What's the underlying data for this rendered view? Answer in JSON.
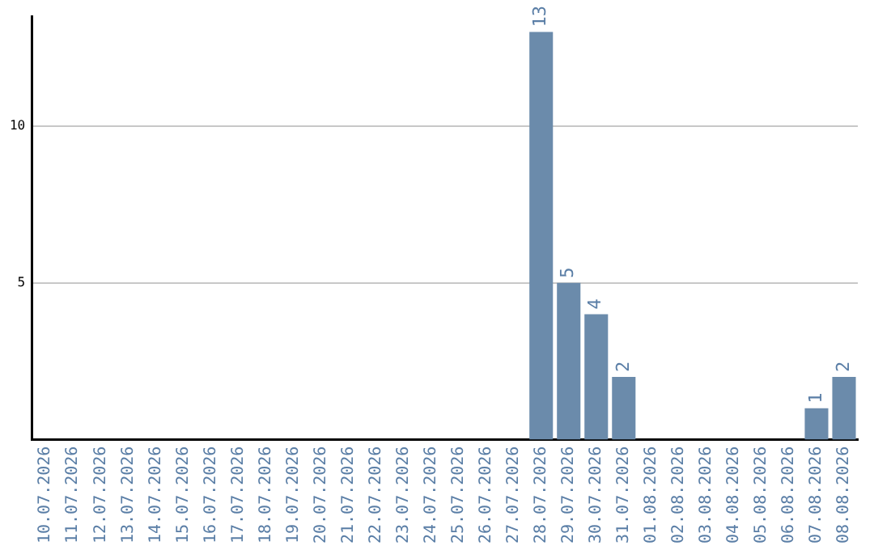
{
  "chart_data": {
    "type": "bar",
    "categories": [
      "10.07.2026",
      "11.07.2026",
      "12.07.2026",
      "13.07.2026",
      "14.07.2026",
      "15.07.2026",
      "16.07.2026",
      "17.07.2026",
      "18.07.2026",
      "19.07.2026",
      "20.07.2026",
      "21.07.2026",
      "22.07.2026",
      "23.07.2026",
      "24.07.2026",
      "25.07.2026",
      "26.07.2026",
      "27.07.2026",
      "28.07.2026",
      "29.07.2026",
      "30.07.2026",
      "31.07.2026",
      "01.08.2026",
      "02.08.2026",
      "03.08.2026",
      "04.08.2026",
      "05.08.2026",
      "06.08.2026",
      "07.08.2026",
      "08.08.2026"
    ],
    "values": [
      0,
      0,
      0,
      0,
      0,
      0,
      0,
      0,
      0,
      0,
      0,
      0,
      0,
      0,
      0,
      0,
      0,
      0,
      13,
      5,
      4,
      2,
      0,
      0,
      0,
      0,
      0,
      0,
      1,
      2
    ],
    "value_labels": [
      null,
      null,
      null,
      null,
      null,
      null,
      null,
      null,
      null,
      null,
      null,
      null,
      null,
      null,
      null,
      null,
      null,
      null,
      "13",
      "5",
      "4",
      "2",
      null,
      null,
      null,
      null,
      null,
      null,
      "1",
      "2"
    ],
    "color": "#6b8bab",
    "ylim": [
      0,
      13.5
    ],
    "yticks": [
      5,
      10
    ],
    "grid": "y",
    "legend": false
  }
}
